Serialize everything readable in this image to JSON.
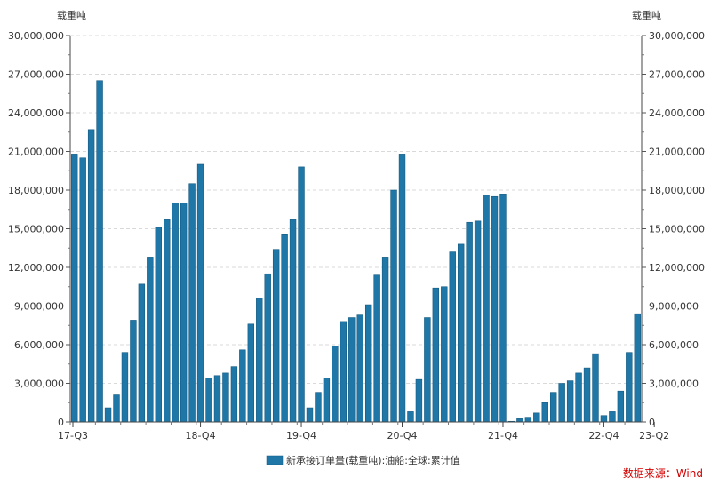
{
  "chart_data": {
    "type": "bar",
    "y_unit_left": "载重吨",
    "y_unit_right": "载重吨",
    "ylim": [
      0,
      30000000
    ],
    "y_ticks": [
      "0",
      "3,000,000",
      "6,000,000",
      "9,000,000",
      "12,000,000",
      "15,000,000",
      "18,000,000",
      "21,000,000",
      "24,000,000",
      "27,000,000",
      "30,000,000"
    ],
    "y_tick_values": [
      0,
      3000000,
      6000000,
      9000000,
      12000000,
      15000000,
      18000000,
      21000000,
      24000000,
      27000000,
      30000000
    ],
    "x_tick_labels": [
      {
        "label": "17-Q3",
        "index": 0
      },
      {
        "label": "18-Q4",
        "index": 15
      },
      {
        "label": "19-Q4",
        "index": 27
      },
      {
        "label": "20-Q4",
        "index": 39
      },
      {
        "label": "21-Q4",
        "index": 51
      },
      {
        "label": "22-Q4",
        "index": 63
      },
      {
        "label": "23-Q2",
        "index": 69
      }
    ],
    "grid": true,
    "legend_position": "bottom-center",
    "series": [
      {
        "name": "新承接订单量(载重吨):油船:全球:累计值",
        "color": "#1F77A8",
        "values": [
          20800000,
          20500000,
          22700000,
          26500000,
          1100000,
          2100000,
          5400000,
          7900000,
          10700000,
          12800000,
          15100000,
          15700000,
          17000000,
          17000000,
          18500000,
          20000000,
          3400000,
          3600000,
          3800000,
          4300000,
          5600000,
          7600000,
          9600000,
          11500000,
          13400000,
          14600000,
          15700000,
          19800000,
          1100000,
          2300000,
          3400000,
          5900000,
          7800000,
          8100000,
          8300000,
          9100000,
          11400000,
          12800000,
          18000000,
          20800000,
          800000,
          3300000,
          8100000,
          10400000,
          10500000,
          13200000,
          13800000,
          15500000,
          15600000,
          17600000,
          17500000,
          17700000,
          50000,
          250000,
          300000,
          700000,
          1500000,
          2300000,
          3000000,
          3200000,
          3800000,
          4200000,
          5300000,
          500000,
          800000,
          2400000,
          5400000,
          8400000
        ]
      }
    ]
  },
  "source_note": "数据来源：Wind"
}
